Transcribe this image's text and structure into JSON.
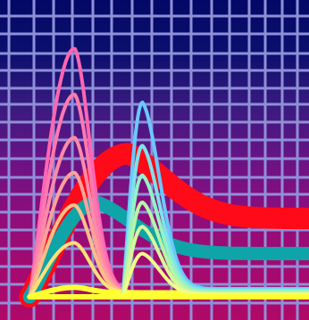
{
  "background_gradient": [
    "#030866",
    "#0b0f6e",
    "#3a1a80",
    "#6a1385",
    "#8e0d7c",
    "#a40a70",
    "#b00968"
  ],
  "grid_color": "#8f8fd8",
  "chart_data": {
    "type": "line",
    "grid": true,
    "legend": "none",
    "title": "",
    "xlabel": "",
    "ylabel": "",
    "xlim": [
      0,
      10
    ],
    "ylim": [
      0,
      10
    ],
    "series": [
      {
        "color": "#ff0a18",
        "width": 24,
        "start": 0.1,
        "peak_x": 3.6,
        "peak_y": 5.3,
        "end_y": 2.9,
        "decay": 0.11
      },
      {
        "color": "#0fa4a8",
        "width": 15,
        "start": 0.1,
        "peak_x": 2.5,
        "peak_y": 3.5,
        "end_y": 1.6,
        "decay": 0.12
      },
      {
        "color": "#ff66b2",
        "width": 4,
        "start": 0.1,
        "peak_x": 1.7,
        "peak_y": 9.2,
        "end_y": 0.15,
        "decay": 0.85
      },
      {
        "color": "#ff79b0",
        "width": 4,
        "start": 0.1,
        "peak_x": 1.7,
        "peak_y": 7.5,
        "end_y": 0.15,
        "decay": 0.85
      },
      {
        "color": "#ff8aa8",
        "width": 4,
        "start": 0.1,
        "peak_x": 1.7,
        "peak_y": 5.9,
        "end_y": 0.15,
        "decay": 0.85
      },
      {
        "color": "#ffa198",
        "width": 4,
        "start": 0.1,
        "peak_x": 1.7,
        "peak_y": 4.6,
        "end_y": 0.15,
        "decay": 0.85
      },
      {
        "color": "#ffbf8a",
        "width": 4,
        "start": 0.1,
        "peak_x": 1.7,
        "peak_y": 3.4,
        "end_y": 0.15,
        "decay": 0.85
      },
      {
        "color": "#ffe077",
        "width": 4,
        "start": 0.1,
        "peak_x": 1.7,
        "peak_y": 2.0,
        "end_y": 0.15,
        "decay": 0.85
      },
      {
        "color": "#ffff33",
        "width": 6,
        "start": 0.1,
        "peak_x": 1.7,
        "peak_y": 0.35,
        "end_y": 0.15,
        "decay": 0.85
      },
      {
        "color": "#6ac8ff",
        "width": 4,
        "start": 3.4,
        "peak_x": 4.1,
        "peak_y": 7.2,
        "end_y": 0.3,
        "decay": 0.7
      },
      {
        "color": "#7ee2e8",
        "width": 4,
        "start": 3.4,
        "peak_x": 4.1,
        "peak_y": 5.6,
        "end_y": 0.25,
        "decay": 0.7
      },
      {
        "color": "#95f2c6",
        "width": 4,
        "start": 3.4,
        "peak_x": 4.1,
        "peak_y": 4.5,
        "end_y": 0.2,
        "decay": 0.7
      },
      {
        "color": "#b6f5a8",
        "width": 4,
        "start": 3.4,
        "peak_x": 4.1,
        "peak_y": 3.5,
        "end_y": 0.15,
        "decay": 0.7
      },
      {
        "color": "#d6f79a",
        "width": 4,
        "start": 3.4,
        "peak_x": 4.1,
        "peak_y": 2.6,
        "end_y": 0.1,
        "decay": 0.7
      },
      {
        "color": "#eefc8a",
        "width": 4,
        "start": 3.4,
        "peak_x": 4.1,
        "peak_y": 1.6,
        "end_y": 0.1,
        "decay": 0.7
      }
    ]
  }
}
